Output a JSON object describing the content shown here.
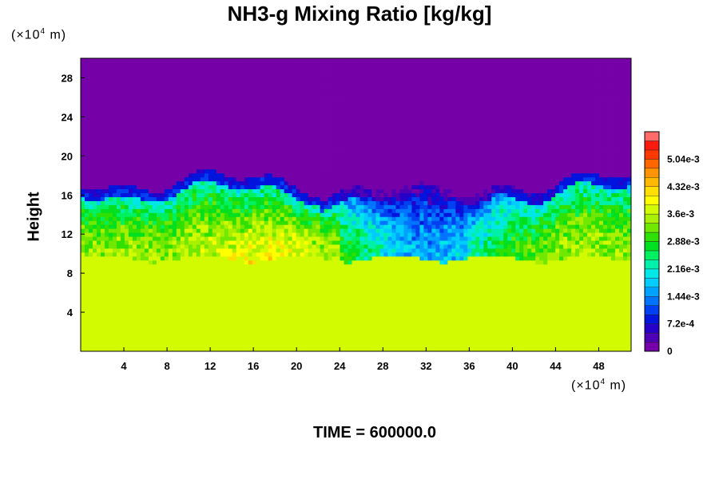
{
  "chart_data": {
    "type": "heatmap",
    "title": "NH3-g Mixing Ratio [kg/kg]",
    "ylabel": "Height",
    "xunit_prefix": "(×10",
    "xunit_exp": "4",
    "xunit_suffix": " m)",
    "yunit_prefix": "(×10",
    "yunit_exp": "4",
    "yunit_suffix": " m)",
    "xlim": [
      0,
      51
    ],
    "ylim": [
      0,
      30
    ],
    "xticks": [
      4,
      8,
      12,
      16,
      20,
      24,
      28,
      32,
      36,
      40,
      44,
      48
    ],
    "yticks": [
      4,
      8,
      12,
      16,
      20,
      24,
      28
    ],
    "colorbar": {
      "min": 0,
      "max": 0.00576,
      "levels": 24,
      "colors": [
        "#7500a8",
        "#4d00b5",
        "#2600c8",
        "#0014dd",
        "#0040f0",
        "#0073ff",
        "#00a2ff",
        "#00ccff",
        "#00e8e6",
        "#00f0aa",
        "#00f060",
        "#00e020",
        "#30e000",
        "#70e800",
        "#a8f000",
        "#d2fa00",
        "#ffff00",
        "#ffde00",
        "#ffba00",
        "#ff9400",
        "#ff6600",
        "#ff3a00",
        "#ff1a10",
        "#ff6a6a"
      ],
      "tick_values": [
        0,
        0.00072,
        0.00144,
        0.00216,
        0.00288,
        0.0036,
        0.00432,
        0.00504
      ],
      "tick_labels": [
        "0",
        "7.2e-4",
        "1.44e-3",
        "2.16e-3",
        "2.88e-3",
        "3.6e-3",
        "4.32e-3",
        "5.04e-3"
      ]
    },
    "field_profile": {
      "description_levels_kg_per_kg": "vertical structure of the field",
      "upper_value": 0,
      "interface_height": 17,
      "lower_uniform_value": 0.0038,
      "lower_uniform_top": 9.5
    }
  },
  "time_label": "TIME = 600000.0"
}
